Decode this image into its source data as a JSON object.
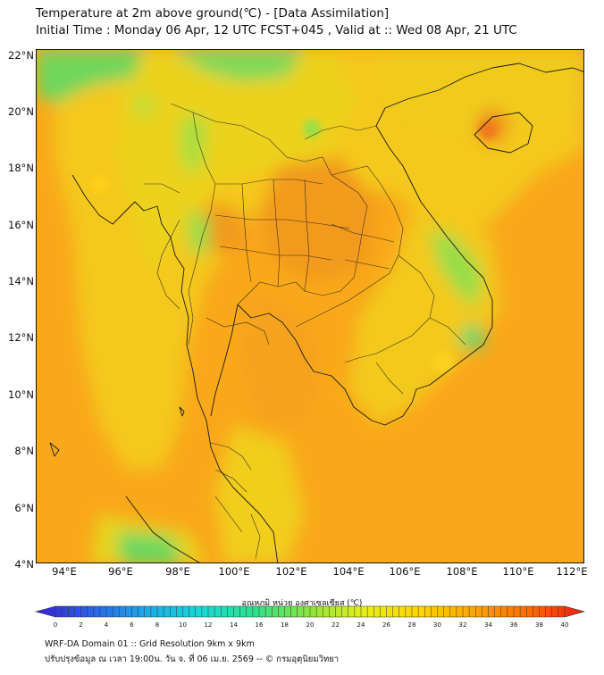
{
  "header": {
    "title_line1": "Temperature at 2m above ground(℃) - [Data Assimilation]",
    "title_line2": "Initial Time : Monday 06 Apr, 12 UTC FCST+045 , Valid at :: Wed 08 Apr, 21 UTC"
  },
  "map": {
    "lat_labels": [
      "22°N",
      "20°N",
      "18°N",
      "16°N",
      "14°N",
      "12°N",
      "10°N",
      "8°N",
      "6°N",
      "4°N"
    ],
    "lon_labels": [
      "94°E",
      "96°E",
      "98°E",
      "100°E",
      "102°E",
      "104°E",
      "106°E",
      "108°E",
      "110°E",
      "112°E"
    ],
    "extent": {
      "lon_min": 93,
      "lon_max": 112.3,
      "lat_min": 4,
      "lat_max": 22.2
    }
  },
  "colorbar": {
    "title": "อุณหภูมิ หน่วย องศาเซลเซียส (℃)",
    "ticks": [
      "0",
      "2",
      "4",
      "6",
      "8",
      "10",
      "12",
      "14",
      "16",
      "18",
      "20",
      "22",
      "24",
      "26",
      "28",
      "30",
      "32",
      "34",
      "36",
      "38",
      "40"
    ],
    "min": 0,
    "max": 40,
    "colors": [
      "#3b1fd1",
      "#2a62e8",
      "#1aa9e8",
      "#18d8d8",
      "#2fe08a",
      "#8ee63a",
      "#e8ef18",
      "#ffd400",
      "#ffa400",
      "#ff6a00",
      "#ee1a12"
    ]
  },
  "footer": {
    "line1": "WRF-DA Domain 01 :: Grid Resolution 9km x 9km",
    "line2": "ปรับปรุงข้อมูล ณ เวลา 19:00น. วัน จ. ที่ 06 เม.ย. 2569 -- © กรมอุตุนิยมวิทยา"
  }
}
